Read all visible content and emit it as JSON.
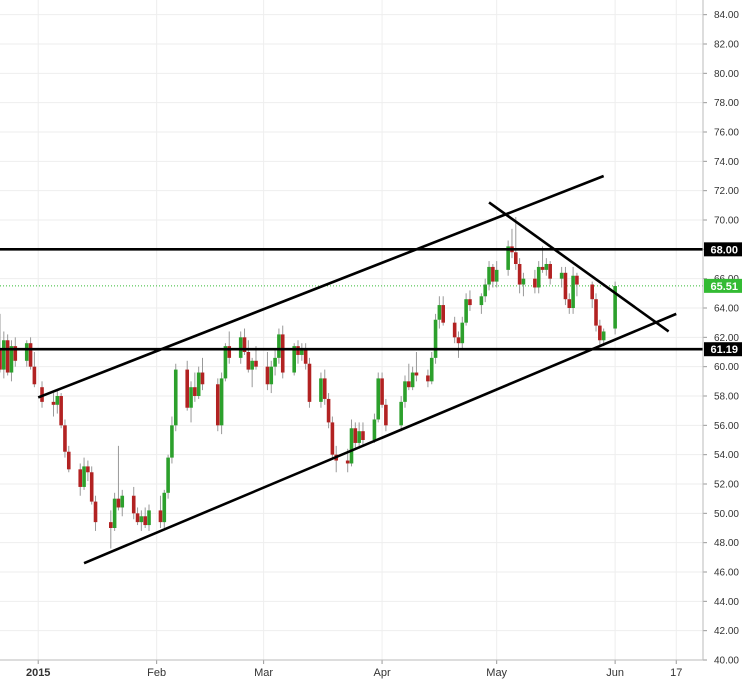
{
  "chart_data": {
    "type": "candlestick",
    "title": "",
    "ylim": [
      40,
      85
    ],
    "y_ticks": [
      "40.00",
      "42.00",
      "44.00",
      "46.00",
      "48.00",
      "50.00",
      "52.00",
      "54.00",
      "56.00",
      "58.00",
      "60.00",
      "62.00",
      "64.00",
      "66.00",
      "68.00",
      "70.00",
      "72.00",
      "74.00",
      "76.00",
      "78.00",
      "80.00",
      "82.00",
      "84.00"
    ],
    "x_axis": {
      "start": "2014-12-22",
      "end": "2015-06-24",
      "ticks": [
        {
          "date": "2015-01-01",
          "label": "2015",
          "bold": true
        },
        {
          "date": "2015-02-01",
          "label": "Feb",
          "bold": false
        },
        {
          "date": "2015-03-01",
          "label": "Mar",
          "bold": false
        },
        {
          "date": "2015-04-01",
          "label": "Apr",
          "bold": false
        },
        {
          "date": "2015-05-01",
          "label": "May",
          "bold": false
        },
        {
          "date": "2015-06-01",
          "label": "Jun",
          "bold": false
        },
        {
          "date": "2015-06-17",
          "label": "17",
          "bold": false
        }
      ]
    },
    "grid": true,
    "colors": {
      "up": "#2ca02c",
      "down": "#b22222",
      "wick": "#999999",
      "grid": "#eeeeee",
      "current": "#33bb33"
    },
    "candles": [
      [
        "2014-12-22",
        61.2,
        63.6,
        59.6,
        59.8
      ],
      [
        "2014-12-23",
        59.8,
        62.4,
        59.2,
        61.8
      ],
      [
        "2014-12-24",
        61.8,
        62.2,
        59.4,
        59.6
      ],
      [
        "2014-12-25",
        59.6,
        61.8,
        59.0,
        61.4
      ],
      [
        "2014-12-26",
        61.4,
        62.0,
        60.0,
        60.4
      ],
      [
        "2014-12-29",
        60.4,
        61.8,
        60.0,
        61.6
      ],
      [
        "2014-12-30",
        61.6,
        62.0,
        59.8,
        60.0
      ],
      [
        "2014-12-31",
        60.0,
        61.0,
        58.6,
        58.8
      ],
      [
        "2015-01-02",
        58.6,
        59.0,
        57.2,
        57.6
      ],
      [
        "2015-01-05",
        57.6,
        58.2,
        56.6,
        57.4
      ],
      [
        "2015-01-06",
        57.4,
        58.4,
        56.8,
        58.0
      ],
      [
        "2015-01-07",
        58.0,
        58.2,
        55.8,
        56.0
      ],
      [
        "2015-01-08",
        56.0,
        56.4,
        53.8,
        54.2
      ],
      [
        "2015-01-09",
        54.2,
        54.6,
        52.8,
        53.0
      ],
      [
        "2015-01-12",
        53.0,
        53.4,
        51.2,
        51.8
      ],
      [
        "2015-01-13",
        51.8,
        53.8,
        51.6,
        53.2
      ],
      [
        "2015-01-14",
        53.2,
        53.6,
        52.2,
        52.8
      ],
      [
        "2015-01-15",
        52.8,
        53.2,
        50.6,
        50.8
      ],
      [
        "2015-01-16",
        50.8,
        51.2,
        48.8,
        49.4
      ],
      [
        "2015-01-20",
        49.4,
        50.2,
        47.6,
        49.0
      ],
      [
        "2015-01-21",
        49.0,
        51.4,
        48.8,
        51.0
      ],
      [
        "2015-01-22",
        51.0,
        54.6,
        50.2,
        50.4
      ],
      [
        "2015-01-23",
        50.4,
        51.6,
        49.8,
        51.2
      ],
      [
        "2015-01-26",
        51.2,
        51.8,
        49.6,
        50.0
      ],
      [
        "2015-01-27",
        50.0,
        50.4,
        49.2,
        49.4
      ],
      [
        "2015-01-28",
        49.4,
        50.2,
        48.8,
        49.8
      ],
      [
        "2015-01-29",
        49.8,
        50.4,
        49.0,
        49.2
      ],
      [
        "2015-01-30",
        49.2,
        50.6,
        48.8,
        50.2
      ],
      [
        "2015-02-02",
        50.2,
        51.2,
        49.0,
        49.4
      ],
      [
        "2015-02-03",
        49.4,
        51.6,
        49.0,
        51.4
      ],
      [
        "2015-02-04",
        51.4,
        54.0,
        51.0,
        53.8
      ],
      [
        "2015-02-05",
        53.8,
        56.6,
        53.4,
        56.0
      ],
      [
        "2015-02-06",
        56.0,
        60.2,
        55.6,
        59.8
      ],
      [
        "2015-02-09",
        59.8,
        60.4,
        57.0,
        57.2
      ],
      [
        "2015-02-10",
        57.2,
        59.0,
        56.2,
        58.6
      ],
      [
        "2015-02-11",
        58.6,
        59.6,
        57.6,
        58.0
      ],
      [
        "2015-02-12",
        58.0,
        60.0,
        57.8,
        59.6
      ],
      [
        "2015-02-13",
        59.6,
        60.6,
        58.4,
        58.8
      ],
      [
        "2015-02-17",
        58.8,
        59.2,
        55.6,
        56.0
      ],
      [
        "2015-02-18",
        56.0,
        59.6,
        55.4,
        59.2
      ],
      [
        "2015-02-19",
        59.2,
        61.6,
        59.0,
        61.4
      ],
      [
        "2015-02-20",
        61.4,
        62.4,
        60.2,
        60.6
      ],
      [
        "2015-02-23",
        60.6,
        62.4,
        60.2,
        62.0
      ],
      [
        "2015-02-24",
        62.0,
        62.6,
        60.8,
        61.0
      ],
      [
        "2015-02-25",
        61.0,
        61.8,
        59.6,
        59.8
      ],
      [
        "2015-02-26",
        59.8,
        60.6,
        58.6,
        60.4
      ],
      [
        "2015-02-27",
        60.4,
        61.4,
        59.8,
        60.0
      ],
      [
        "2015-03-02",
        60.0,
        61.0,
        58.4,
        58.8
      ],
      [
        "2015-03-03",
        58.8,
        60.4,
        58.2,
        60.0
      ],
      [
        "2015-03-04",
        60.0,
        61.2,
        59.4,
        60.6
      ],
      [
        "2015-03-05",
        60.6,
        62.6,
        60.2,
        62.2
      ],
      [
        "2015-03-06",
        62.2,
        62.8,
        59.2,
        59.6
      ],
      [
        "2015-03-09",
        59.6,
        61.6,
        59.4,
        61.4
      ],
      [
        "2015-03-10",
        61.4,
        61.8,
        60.2,
        60.8
      ],
      [
        "2015-03-11",
        60.8,
        61.6,
        60.4,
        61.2
      ],
      [
        "2015-03-12",
        61.2,
        61.6,
        59.8,
        60.2
      ],
      [
        "2015-03-13",
        60.2,
        60.6,
        57.2,
        57.6
      ],
      [
        "2015-03-16",
        57.6,
        59.6,
        57.2,
        59.2
      ],
      [
        "2015-03-17",
        59.2,
        59.8,
        57.4,
        57.8
      ],
      [
        "2015-03-18",
        57.8,
        58.2,
        55.8,
        56.2
      ],
      [
        "2015-03-19",
        56.2,
        56.6,
        53.8,
        54.0
      ],
      [
        "2015-03-20",
        54.0,
        54.6,
        52.8,
        53.6
      ],
      [
        "2015-03-23",
        53.6,
        54.4,
        52.8,
        53.4
      ],
      [
        "2015-03-24",
        53.4,
        56.4,
        53.2,
        55.8
      ],
      [
        "2015-03-25",
        55.8,
        56.2,
        54.4,
        54.8
      ],
      [
        "2015-03-26",
        54.8,
        56.2,
        54.4,
        55.6
      ],
      [
        "2015-03-27",
        55.6,
        56.2,
        54.6,
        55.0
      ],
      [
        "2015-03-30",
        55.0,
        56.8,
        54.8,
        56.4
      ],
      [
        "2015-03-31",
        56.4,
        59.6,
        56.2,
        59.2
      ],
      [
        "2015-04-01",
        59.2,
        59.6,
        57.2,
        57.4
      ],
      [
        "2015-04-02",
        57.4,
        57.8,
        55.6,
        56.0
      ],
      [
        "2015-04-06",
        56.0,
        58.0,
        55.6,
        57.6
      ],
      [
        "2015-04-07",
        57.6,
        59.4,
        57.2,
        59.0
      ],
      [
        "2015-04-08",
        59.0,
        60.2,
        58.4,
        58.6
      ],
      [
        "2015-04-09",
        58.6,
        60.0,
        58.4,
        59.6
      ],
      [
        "2015-04-10",
        59.6,
        61.0,
        59.0,
        59.4
      ],
      [
        "2015-04-13",
        59.4,
        59.8,
        58.6,
        59.0
      ],
      [
        "2015-04-14",
        59.0,
        61.0,
        58.8,
        60.6
      ],
      [
        "2015-04-15",
        60.6,
        63.6,
        60.2,
        63.2
      ],
      [
        "2015-04-16",
        63.2,
        64.8,
        62.6,
        64.2
      ],
      [
        "2015-04-17",
        64.2,
        64.8,
        62.8,
        63.0
      ],
      [
        "2015-04-20",
        63.0,
        63.4,
        61.6,
        62.0
      ],
      [
        "2015-04-21",
        62.0,
        62.4,
        60.6,
        61.6
      ],
      [
        "2015-04-22",
        61.6,
        63.4,
        61.2,
        63.0
      ],
      [
        "2015-04-23",
        63.0,
        65.0,
        62.8,
        64.6
      ],
      [
        "2015-04-24",
        64.6,
        65.2,
        63.8,
        64.2
      ],
      [
        "2015-04-27",
        64.2,
        65.0,
        63.6,
        64.8
      ],
      [
        "2015-04-28",
        64.8,
        66.0,
        64.4,
        65.6
      ],
      [
        "2015-04-29",
        65.6,
        67.2,
        65.2,
        66.8
      ],
      [
        "2015-04-30",
        66.8,
        67.0,
        65.4,
        65.8
      ],
      [
        "2015-05-01",
        65.8,
        67.2,
        65.4,
        66.6
      ],
      [
        "2015-05-04",
        66.6,
        68.6,
        66.2,
        68.2
      ],
      [
        "2015-05-05",
        68.2,
        69.4,
        67.4,
        67.8
      ],
      [
        "2015-05-06",
        67.8,
        70.2,
        66.6,
        67.0
      ],
      [
        "2015-05-07",
        67.0,
        67.4,
        65.0,
        65.6
      ],
      [
        "2015-05-08",
        65.6,
        66.4,
        64.8,
        66.0
      ],
      [
        "2015-05-11",
        66.0,
        66.6,
        65.0,
        65.4
      ],
      [
        "2015-05-12",
        65.4,
        67.2,
        65.0,
        66.8
      ],
      [
        "2015-05-13",
        66.8,
        68.2,
        66.4,
        66.6
      ],
      [
        "2015-05-14",
        66.6,
        67.4,
        66.2,
        67.0
      ],
      [
        "2015-05-15",
        67.0,
        67.2,
        65.6,
        66.0
      ],
      [
        "2015-05-18",
        66.0,
        66.8,
        65.4,
        66.4
      ],
      [
        "2015-05-19",
        66.4,
        66.8,
        64.2,
        64.6
      ],
      [
        "2015-05-20",
        64.6,
        65.0,
        63.6,
        64.0
      ],
      [
        "2015-05-21",
        64.0,
        66.8,
        63.6,
        66.2
      ],
      [
        "2015-05-22",
        66.2,
        66.4,
        64.8,
        65.6
      ],
      [
        "2015-05-26",
        65.6,
        65.8,
        64.0,
        64.6
      ],
      [
        "2015-05-27",
        64.6,
        65.0,
        62.4,
        62.8
      ],
      [
        "2015-05-28",
        62.8,
        63.2,
        61.4,
        61.8
      ],
      [
        "2015-05-29",
        61.8,
        62.6,
        61.4,
        62.4
      ],
      [
        "2015-06-01",
        62.6,
        65.8,
        62.2,
        65.5
      ]
    ],
    "trendlines": [
      {
        "x1": "2015-01-01",
        "y1": 57.9,
        "x2": "2015-05-29",
        "y2": 73.0
      },
      {
        "x1": "2015-01-13",
        "y1": 46.6,
        "x2": "2015-06-17",
        "y2": 63.6
      },
      {
        "x1": "2015-04-29",
        "y1": 71.2,
        "x2": "2015-06-15",
        "y2": 62.4
      }
    ],
    "hlines": [
      {
        "y": 68.0,
        "label": "68.00"
      },
      {
        "y": 61.19,
        "label": "61.19"
      }
    ],
    "current": {
      "y": 65.51,
      "label": "65.51"
    }
  }
}
